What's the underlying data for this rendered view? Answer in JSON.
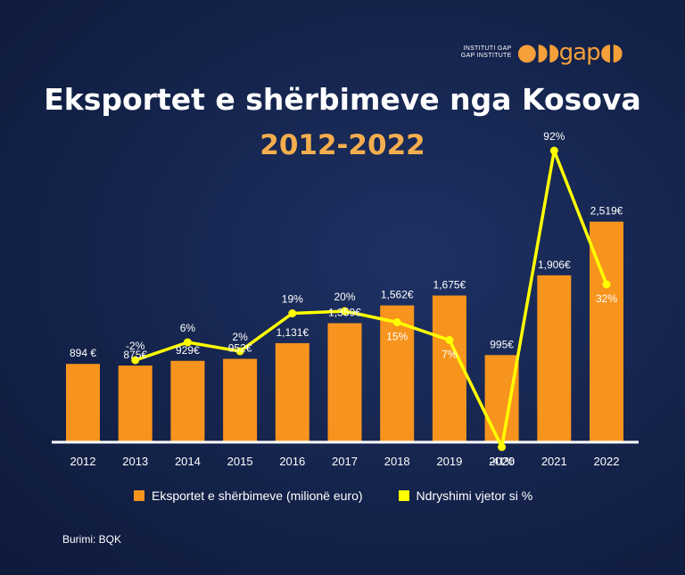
{
  "logo": {
    "line1": "INSTITUTI GAP",
    "line2": "GAP INSTITUTE",
    "mark": "gap"
  },
  "title": "Eksportet e shërbimeve nga Kosova",
  "subtitle": "2012-2022",
  "colors": {
    "bar": "#f7941d",
    "line": "#ffff00",
    "axis": "#ffffff"
  },
  "legend": {
    "bars": "Eksportet e shërbimeve (milionë euro)",
    "line": "Ndryshimi vjetor si %"
  },
  "source": "Burimi: BQK",
  "chart_data": {
    "type": "bar",
    "categories": [
      "2012",
      "2013",
      "2014",
      "2015",
      "2016",
      "2017",
      "2018",
      "2019",
      "2020",
      "2021",
      "2022"
    ],
    "series": [
      {
        "name": "Eksportet e shërbimeve (milionë euro)",
        "type": "bar",
        "values": [
          894,
          875,
          929,
          952,
          1131,
          1359,
          1562,
          1675,
          995,
          1906,
          2519
        ],
        "labels": [
          "894 €",
          "875€",
          "929€",
          "952€",
          "1,131€",
          "1,359€",
          "1,562€",
          "1,675€",
          "995€",
          "1,906€",
          "2,519€"
        ]
      },
      {
        "name": "Ndryshimi vjetor si %",
        "type": "line",
        "values": [
          null,
          -2,
          6,
          2,
          19,
          20,
          15,
          7,
          -41,
          92,
          32
        ],
        "labels": [
          "",
          "-2%",
          "6%",
          "2%",
          "19%",
          "20%",
          "15%",
          "7%",
          "-41%",
          "92%",
          "32%"
        ]
      }
    ]
  }
}
